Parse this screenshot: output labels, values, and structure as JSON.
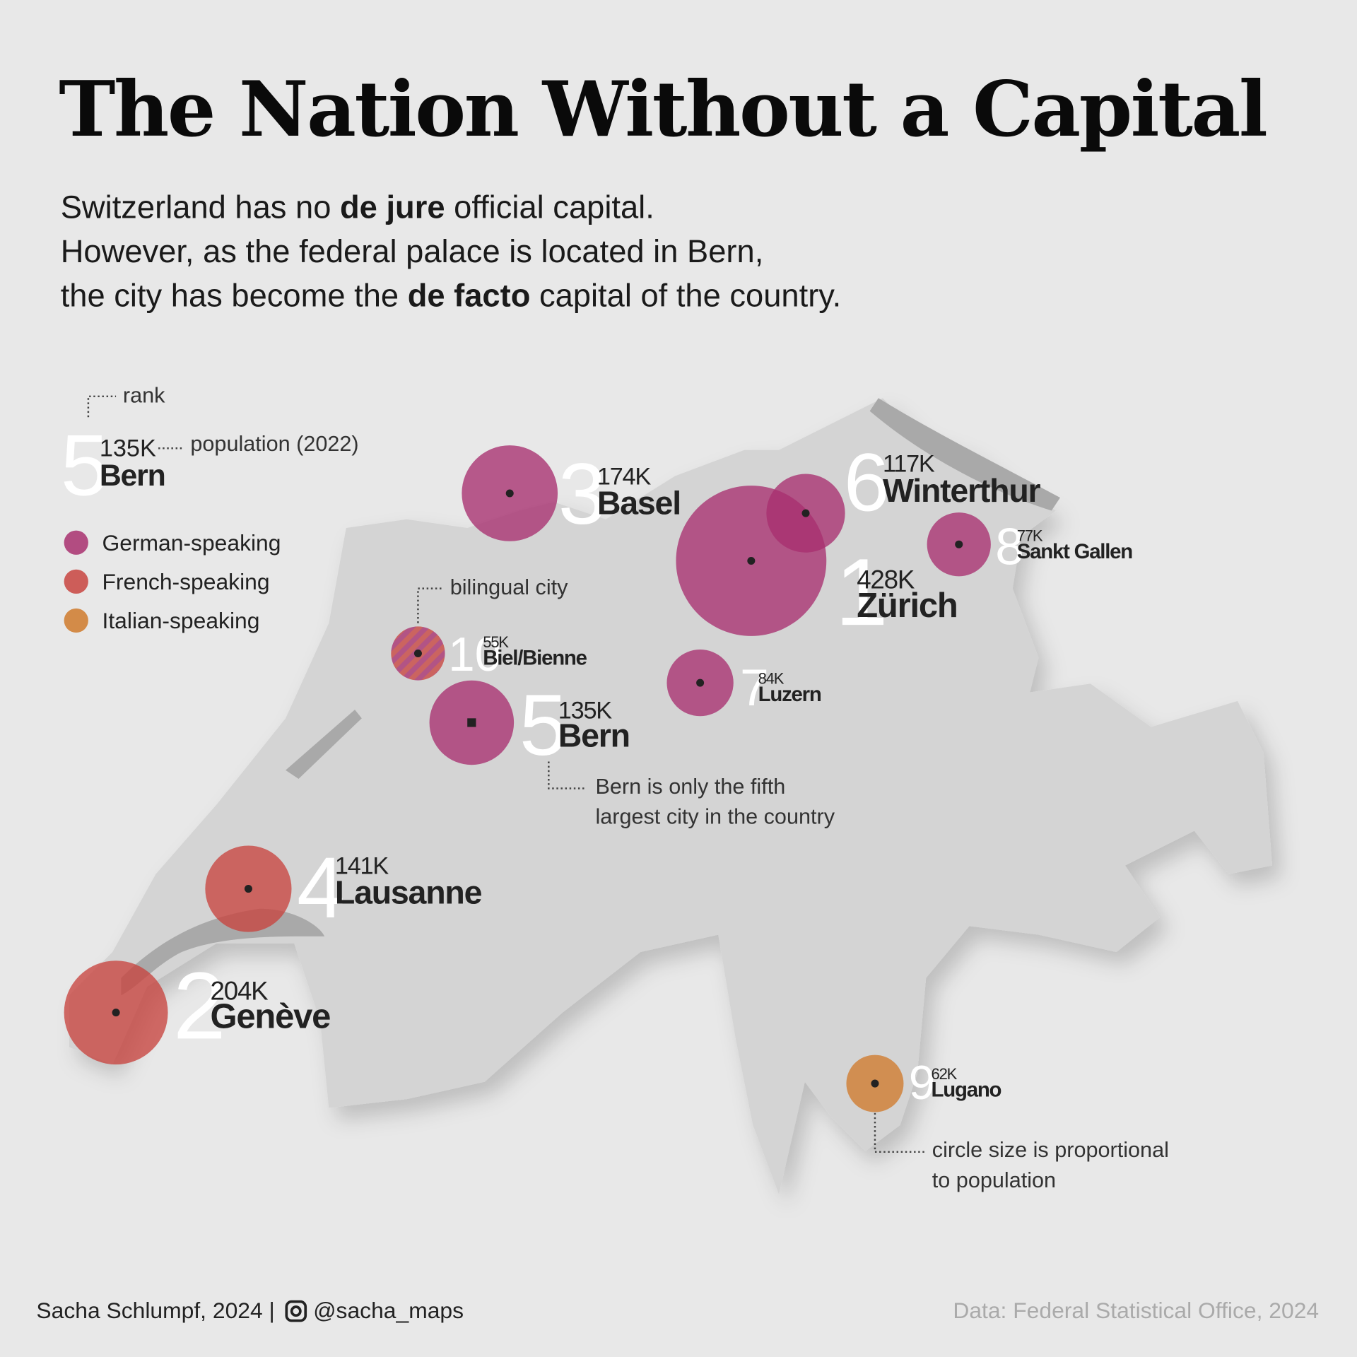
{
  "title": "The Nation Without a Capital",
  "subtitle": [
    [
      "Switzerland has no ",
      "de jure",
      " official capital."
    ],
    [
      "However, as the federal palace is located in Bern,"
    ],
    [
      "the city has become the ",
      "de facto",
      " capital of the country."
    ]
  ],
  "legend": {
    "annotations": {
      "rank": "rank",
      "population": "population (2022)"
    },
    "languages": [
      {
        "name": "German-speaking",
        "color": "#a8306f"
      },
      {
        "name": "French-speaking",
        "color": "#c8443f"
      },
      {
        "name": "Italian-speaking",
        "color": "#cf7a2c"
      }
    ]
  },
  "cities": [
    {
      "rank": 1,
      "name": "Zürich",
      "population": 428,
      "population_label": "428K",
      "language": [
        0
      ]
    },
    {
      "rank": 2,
      "name": "Genève",
      "population": 204,
      "population_label": "204K",
      "language": [
        1
      ]
    },
    {
      "rank": 3,
      "name": "Basel",
      "population": 174,
      "population_label": "174K",
      "language": [
        0
      ]
    },
    {
      "rank": 4,
      "name": "Lausanne",
      "population": 141,
      "population_label": "141K",
      "language": [
        1
      ]
    },
    {
      "rank": 5,
      "name": "Bern",
      "population": 135,
      "population_label": "135K",
      "language": [
        0
      ]
    },
    {
      "rank": 6,
      "name": "Winterthur",
      "population": 117,
      "population_label": "117K",
      "language": [
        0
      ]
    },
    {
      "rank": 7,
      "name": "Luzern",
      "population": 84,
      "population_label": "84K",
      "language": [
        0
      ]
    },
    {
      "rank": 8,
      "name": "Sankt Gallen",
      "population": 77,
      "population_label": "77K",
      "language": [
        0
      ]
    },
    {
      "rank": 9,
      "name": "Lugano",
      "population": 62,
      "population_label": "62K",
      "language": [
        2
      ]
    },
    {
      "rank": 10,
      "name": "Biel/Bienne",
      "population": 55,
      "population_label": "55K",
      "language": [
        0,
        1
      ]
    }
  ],
  "annotations": {
    "bilingual": "bilingual city",
    "bern": [
      "Bern is only the fifth",
      "largest city in the country"
    ],
    "size": [
      "circle size is proportional",
      "to population"
    ]
  },
  "footer": {
    "author": "Sacha Schlumpf, 2024 |",
    "handle": "@sacha_maps",
    "source": "Data: Federal Statistical Office, 2024"
  }
}
